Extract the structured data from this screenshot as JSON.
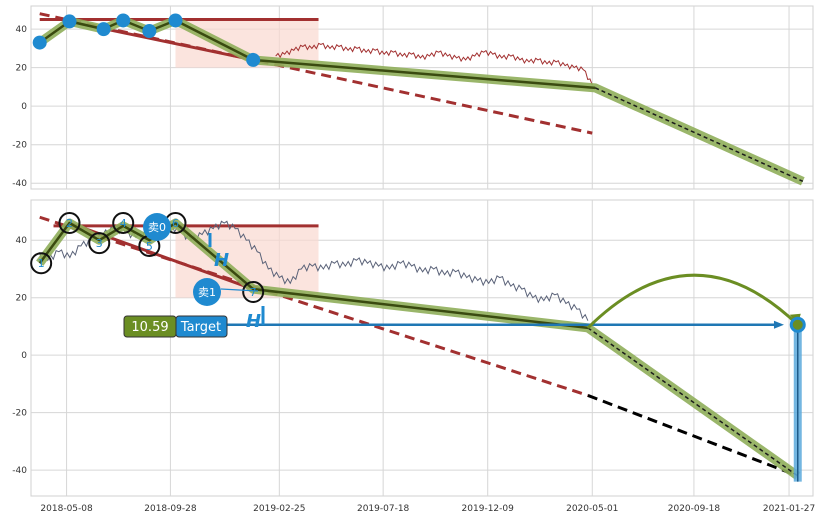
{
  "chart_data": [
    {
      "type": "line",
      "panel": "top",
      "ylim": [
        -43,
        52
      ],
      "y_ticks": [
        40,
        20,
        0,
        -20,
        -40
      ],
      "x_dates": [
        "2018-03-20",
        "2021-03-01"
      ],
      "grid": true,
      "price_series": {
        "color": "#a23030",
        "start_date": "2019-02-20",
        "end_date": "2020-05-01",
        "values": [
          26,
          27,
          29,
          31,
          30,
          32,
          30,
          31,
          29,
          30,
          28,
          29,
          27,
          28,
          26,
          27,
          25,
          26,
          28,
          26,
          25,
          24,
          26,
          28,
          27,
          25,
          26,
          24,
          23,
          24,
          22,
          23,
          21,
          20,
          19,
          11
        ]
      },
      "zigzag_points": [
        {
          "date": "2018-04-01",
          "value": 33
        },
        {
          "date": "2018-05-12",
          "value": 44
        },
        {
          "date": "2018-06-28",
          "value": 40
        },
        {
          "date": "2018-07-25",
          "value": 44.5
        },
        {
          "date": "2018-08-30",
          "value": 39
        },
        {
          "date": "2018-10-05",
          "value": 44.5
        },
        {
          "date": "2019-01-20",
          "value": 24
        },
        {
          "date": "2020-05-05",
          "value": 9.5
        },
        {
          "date": "2021-02-15",
          "value": -39
        }
      ],
      "trend_lines": [
        {
          "style": "dashed",
          "color": "#a23030",
          "from": {
            "date": "2018-04-01",
            "value": 48
          },
          "to": {
            "date": "2020-05-01",
            "value": -14
          }
        },
        {
          "style": "solid",
          "color": "#a23030",
          "from": {
            "date": "2018-04-01",
            "value": 45
          },
          "to": {
            "date": "2019-04-20",
            "value": 45
          }
        },
        {
          "style": "solid",
          "color": "#a23030",
          "from": {
            "date": "2018-05-12",
            "value": 44
          },
          "to": {
            "date": "2019-01-20",
            "value": 24
          }
        }
      ],
      "shaded_region": {
        "from_date": "2018-10-05",
        "to_date": "2019-04-20",
        "top": 45,
        "color": "#f9d8d0"
      }
    },
    {
      "type": "line",
      "panel": "bottom",
      "ylim": [
        -49,
        54
      ],
      "y_ticks": [
        40,
        20,
        0,
        -20,
        -40
      ],
      "x_tick_labels": [
        "2018-05-08",
        "2018-09-28",
        "2019-02-25",
        "2019-07-18",
        "2019-12-09",
        "2020-05-01",
        "2020-09-18",
        "2021-01-27"
      ],
      "grid": true,
      "price_series": {
        "color": "#5a6278",
        "start_date": "2018-03-28",
        "end_date": "2020-04-25",
        "values": [
          35,
          33,
          36,
          34,
          38,
          40,
          42,
          44,
          43,
          41,
          42,
          44,
          45,
          43,
          40,
          42,
          44,
          46,
          44,
          40,
          36,
          30,
          27,
          25,
          30,
          31,
          30,
          32,
          31,
          33,
          32,
          31,
          30,
          32,
          31,
          29,
          30,
          28,
          29,
          27,
          26,
          25,
          27,
          24,
          23,
          20,
          19,
          21,
          18,
          16,
          12
        ]
      },
      "labels": {
        "circles": [
          "1",
          "2",
          "3",
          "4",
          "5",
          "6",
          "7"
        ],
        "sell": [
          "卖0",
          "卖1"
        ],
        "h_marks": [
          "H",
          "H"
        ],
        "target_value": "10.59",
        "target_label": "Target"
      },
      "circle_points": [
        {
          "label": "1",
          "date": "2018-04-03",
          "value": 32
        },
        {
          "label": "2",
          "date": "2018-05-12",
          "value": 46
        },
        {
          "label": "3",
          "date": "2018-06-22",
          "value": 39
        },
        {
          "label": "4",
          "date": "2018-07-25",
          "value": 46
        },
        {
          "label": "5",
          "date": "2018-08-30",
          "value": 38
        },
        {
          "label": "6",
          "date": "2018-10-05",
          "value": 46
        },
        {
          "label": "7",
          "date": "2019-01-20",
          "value": 22
        }
      ],
      "zigzag_points": [
        {
          "date": "2018-04-01",
          "value": 32
        },
        {
          "date": "2018-05-12",
          "value": 46
        },
        {
          "date": "2018-06-22",
          "value": 40
        },
        {
          "date": "2018-07-25",
          "value": 45
        },
        {
          "date": "2018-08-30",
          "value": 40
        },
        {
          "date": "2018-10-05",
          "value": 46
        },
        {
          "date": "2019-01-20",
          "value": 23
        },
        {
          "date": "2020-04-25",
          "value": 9.5
        },
        {
          "date": "2021-02-08",
          "value": -42
        }
      ],
      "trend_lines": [
        {
          "style": "dashed",
          "color": "#a23030",
          "from": {
            "date": "2018-04-01",
            "value": 48
          },
          "to": {
            "date": "2020-04-25",
            "value": -14
          }
        },
        {
          "style": "dashed",
          "color": "#000000",
          "from": {
            "date": "2020-04-25",
            "value": -14
          },
          "to": {
            "date": "2021-02-08",
            "value": -42
          }
        },
        {
          "style": "solid",
          "color": "#a23030",
          "from": {
            "date": "2018-04-20",
            "value": 45
          },
          "to": {
            "date": "2019-04-20",
            "value": 45
          }
        },
        {
          "style": "solid",
          "color": "#a23030",
          "from": {
            "date": "2018-05-12",
            "value": 46
          },
          "to": {
            "date": "2019-01-20",
            "value": 23
          }
        }
      ],
      "shaded_region": {
        "from_date": "2018-10-05",
        "to_date": "2019-04-20",
        "top": 45,
        "color": "#f9d8d0"
      },
      "target_arrow": {
        "from": {
          "date": "2018-11-20",
          "value": 10.59
        },
        "to": {
          "date": "2021-01-20",
          "value": 10.59
        },
        "color": "#1f77b4"
      },
      "arc": {
        "from": {
          "date": "2020-04-25",
          "value": 9.5
        },
        "to": {
          "date": "2021-02-08",
          "value": 10.59
        },
        "peak": 24,
        "color": "#6b8e23"
      },
      "vertical_bar": {
        "date": "2021-02-08",
        "from": 10.59,
        "to": -44,
        "color": "#1f8ad0"
      }
    }
  ]
}
